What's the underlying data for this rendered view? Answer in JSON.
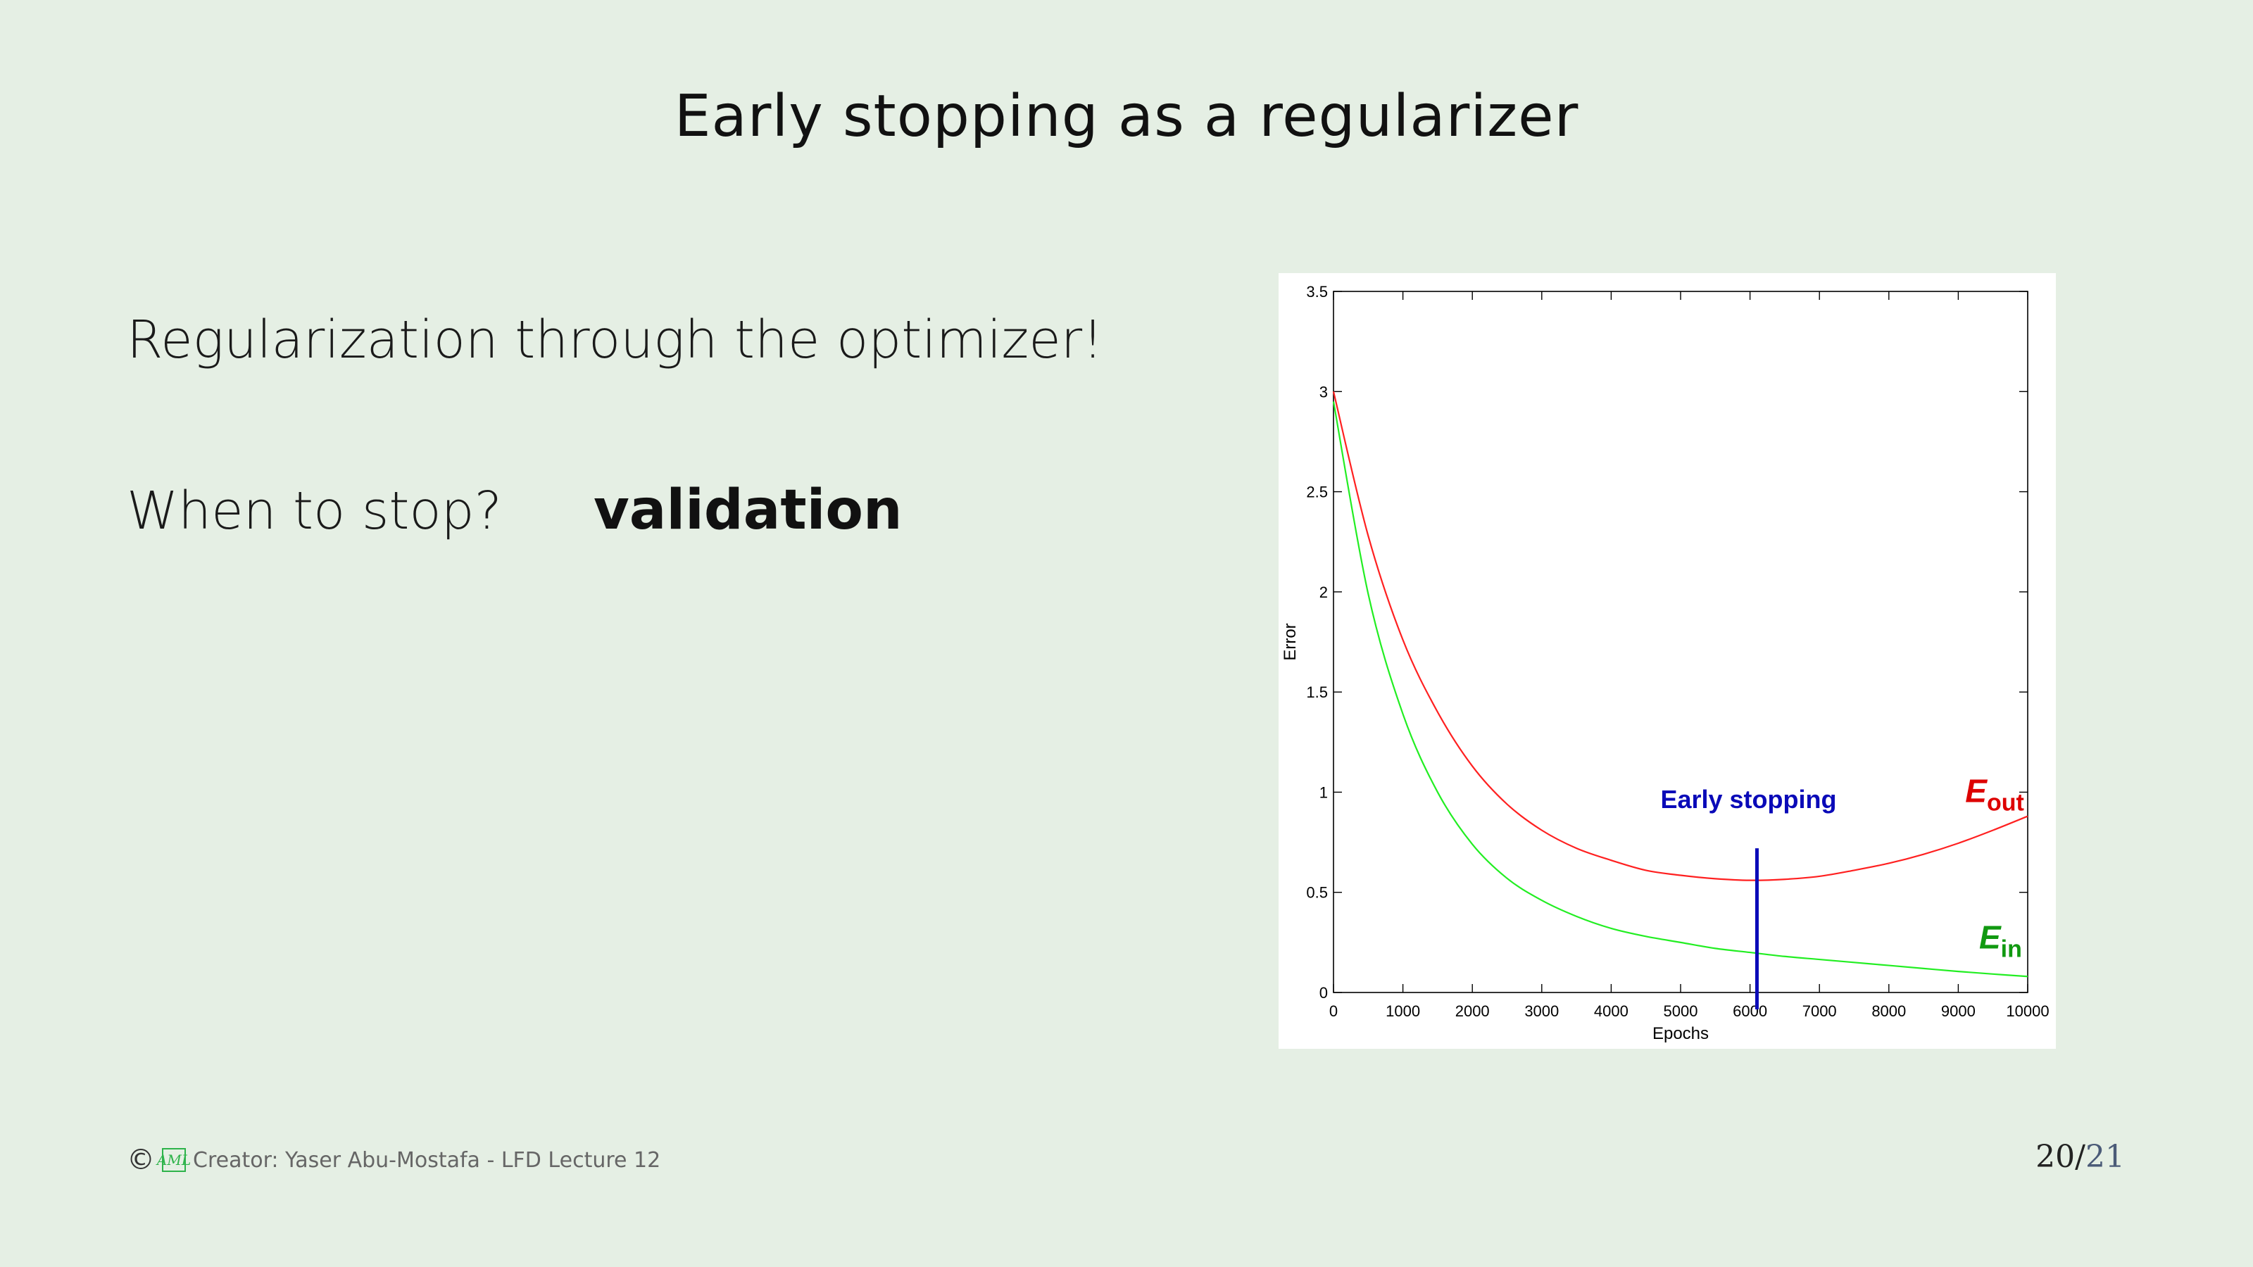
{
  "slide": {
    "title": "Early stopping as a regularizer",
    "line1": "Regularization through the optimizer!",
    "question": "When to stop?",
    "answer": "validation"
  },
  "footer": {
    "copyright_symbol": "©",
    "logo_text": "AML",
    "credit": "Creator: Yaser Abu-Mostafa - LFD Lecture 12"
  },
  "page": {
    "current": "20",
    "separator": "/",
    "total": "21"
  },
  "colors": {
    "background": "#e5efe4",
    "eout": "#ff2020",
    "ein": "#22ee22",
    "eout_label": "#dd0000",
    "ein_label": "#119911",
    "early_stop": "#0a0ab8"
  },
  "chart_data": {
    "type": "line",
    "xlabel": "Epochs",
    "ylabel": "Error",
    "xlim": [
      0,
      10000
    ],
    "ylim": [
      0,
      3.5
    ],
    "x_ticks": [
      "0",
      "1000",
      "2000",
      "3000",
      "4000",
      "5000",
      "6000",
      "7000",
      "8000",
      "9000",
      "10000"
    ],
    "y_ticks": [
      "0",
      "0.5",
      "1",
      "1.5",
      "2",
      "2.5",
      "3",
      "3.5"
    ],
    "grid": false,
    "series": [
      {
        "name": "E_out",
        "label_main": "E",
        "label_sub": "out",
        "color": "#ff2020",
        "x": [
          0,
          500,
          1000,
          1500,
          2000,
          2500,
          3000,
          3500,
          4000,
          4500,
          5000,
          5500,
          6000,
          6500,
          7000,
          7500,
          8000,
          8500,
          9000,
          9500,
          10000
        ],
        "y": [
          3.0,
          2.28,
          1.76,
          1.4,
          1.13,
          0.94,
          0.81,
          0.72,
          0.66,
          0.61,
          0.585,
          0.568,
          0.56,
          0.565,
          0.58,
          0.61,
          0.645,
          0.69,
          0.745,
          0.81,
          0.88
        ]
      },
      {
        "name": "E_in",
        "label_main": "E",
        "label_sub": "in",
        "color": "#22ee22",
        "x": [
          0,
          500,
          1000,
          1500,
          2000,
          2500,
          3000,
          3500,
          4000,
          4500,
          5000,
          5500,
          6000,
          6500,
          7000,
          7500,
          8000,
          8500,
          9000,
          9500,
          10000
        ],
        "y": [
          2.95,
          1.99,
          1.39,
          1.0,
          0.74,
          0.57,
          0.46,
          0.38,
          0.32,
          0.28,
          0.25,
          0.22,
          0.2,
          0.18,
          0.165,
          0.15,
          0.135,
          0.12,
          0.105,
          0.092,
          0.08
        ]
      }
    ],
    "annotations": [
      {
        "text": "Early stopping",
        "type": "vline",
        "x": 6100,
        "y_top": 0.72,
        "color": "#0a0ab8"
      }
    ]
  }
}
